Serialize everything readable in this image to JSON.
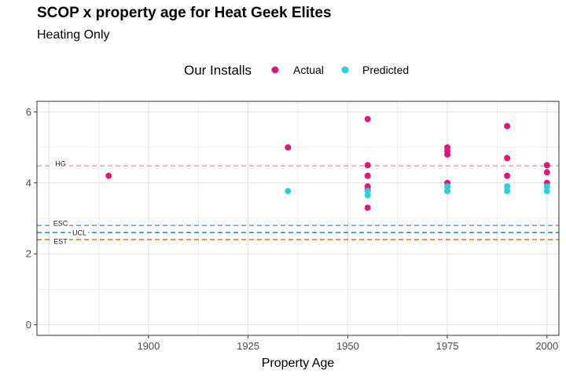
{
  "title": "SCOP x property age for Heat Geek Elites",
  "subtitle": "Heating Only",
  "legend": {
    "title": "Our Installs",
    "items": [
      {
        "label": "Actual",
        "color": "#e0177a"
      },
      {
        "label": "Predicted",
        "color": "#29d0e0"
      }
    ]
  },
  "chart_data": {
    "type": "scatter",
    "title": "SCOP x property age for Heat Geek Elites",
    "subtitle": "Heating Only",
    "xlabel": "Property Age",
    "ylabel": "",
    "xlim": [
      1872,
      2003
    ],
    "ylim": [
      -0.3,
      6.3
    ],
    "xticks": [
      1900,
      1925,
      1950,
      1975,
      2000
    ],
    "yticks": [
      0,
      2,
      4,
      6
    ],
    "grid": true,
    "legend_position": "top",
    "series": [
      {
        "name": "Actual",
        "color": "#e0177a",
        "points": [
          [
            1890,
            4.2
          ],
          [
            1935,
            5.0
          ],
          [
            1955,
            5.8
          ],
          [
            1955,
            4.5
          ],
          [
            1955,
            4.2
          ],
          [
            1955,
            3.9
          ],
          [
            1955,
            3.8
          ],
          [
            1955,
            3.3
          ],
          [
            1975,
            5.0
          ],
          [
            1975,
            4.9
          ],
          [
            1975,
            4.8
          ],
          [
            1975,
            4.0
          ],
          [
            1990,
            5.6
          ],
          [
            1990,
            4.7
          ],
          [
            1990,
            4.2
          ],
          [
            2000,
            4.5
          ],
          [
            2000,
            4.3
          ],
          [
            2000,
            4.0
          ]
        ]
      },
      {
        "name": "Predicted",
        "color": "#29d0e0",
        "points": [
          [
            1935,
            3.77
          ],
          [
            1955,
            3.77
          ],
          [
            1955,
            3.65
          ],
          [
            1975,
            3.9
          ],
          [
            1975,
            3.77
          ],
          [
            1990,
            3.9
          ],
          [
            1990,
            3.77
          ],
          [
            2000,
            3.9
          ],
          [
            2000,
            3.77
          ]
        ]
      }
    ],
    "reference_lines": [
      {
        "label": "HG",
        "y": 4.48,
        "color": "#f4a6bf"
      },
      {
        "label": "ESC",
        "y": 2.8,
        "color": "#7f9eae"
      },
      {
        "label": "UCL",
        "y": 2.6,
        "color": "#2a8fc8"
      },
      {
        "label": "EST",
        "y": 2.4,
        "color": "#e87b1e"
      }
    ]
  }
}
